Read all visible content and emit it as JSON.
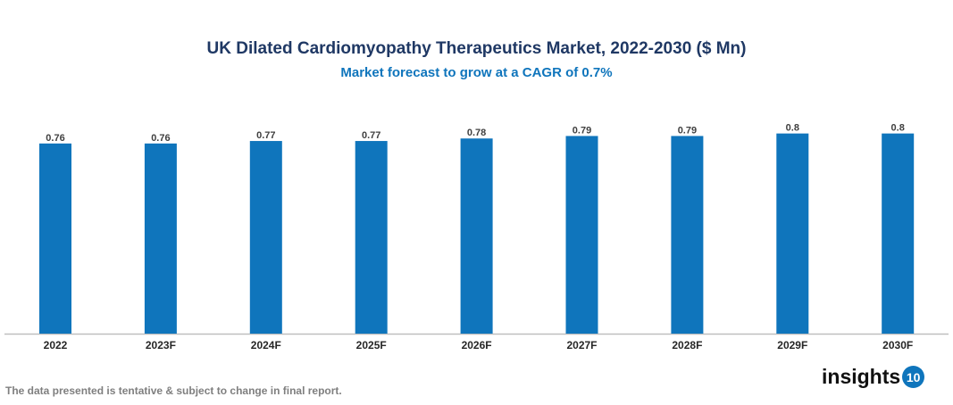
{
  "chart_data": {
    "type": "bar",
    "title": "UK Dilated Cardiomyopathy Therapeutics Market, 2022-2030 ($ Mn)",
    "subtitle": "Market forecast to grow at a CAGR of 0.7%",
    "categories": [
      "2022",
      "2023F",
      "2024F",
      "2025F",
      "2026F",
      "2027F",
      "2028F",
      "2029F",
      "2030F"
    ],
    "values": [
      0.76,
      0.76,
      0.77,
      0.77,
      0.78,
      0.79,
      0.79,
      0.8,
      0.8
    ],
    "data_labels": [
      "0.76",
      "0.76",
      "0.77",
      "0.77",
      "0.78",
      "0.79",
      "0.79",
      "0.8",
      "0.8"
    ],
    "xlabel": "",
    "ylabel": "",
    "ylim": [
      0,
      0.87
    ],
    "grid": false,
    "bar_color": "#0f75bc"
  },
  "footnote": "The data presented is tentative & subject to change in final report.",
  "logo": {
    "text": "insights",
    "badge": "10"
  }
}
